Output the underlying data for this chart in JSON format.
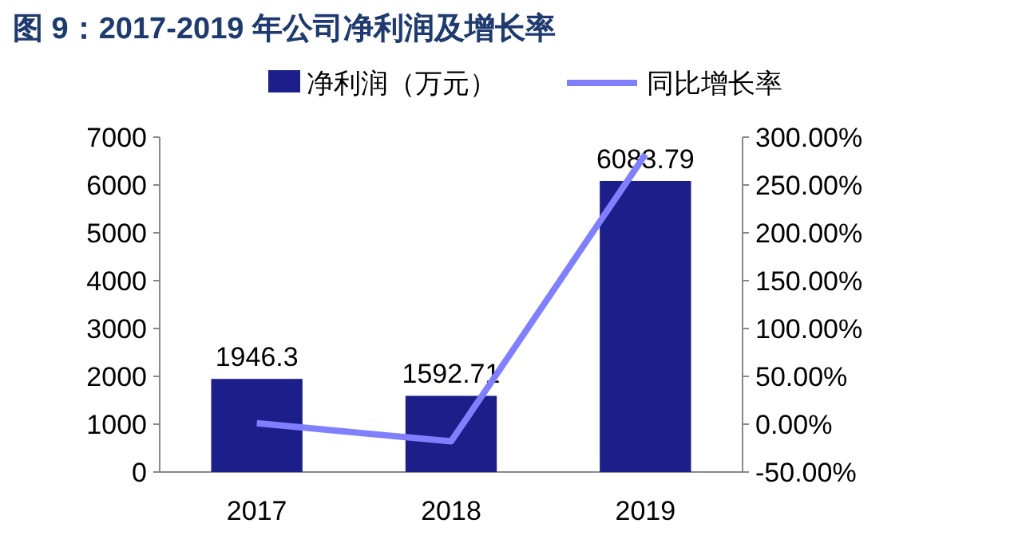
{
  "chart_data": {
    "type": "bar",
    "title": "图 9：2017-2019 年公司净利润及增长率",
    "categories": [
      "2017",
      "2018",
      "2019"
    ],
    "series": [
      {
        "name": "净利润（万元）",
        "color": "#1c1f8a",
        "values": [
          1946.3,
          1592.71,
          6083.79
        ],
        "value_labels": [
          "1946.3",
          "1592.71",
          "6083.79"
        ]
      },
      {
        "name": "同比增长率",
        "type": "line",
        "axis": "y2",
        "color": "#8080ff",
        "values": [
          1,
          -18,
          282
        ]
      }
    ],
    "ylim": [
      0,
      7000
    ],
    "yticks": [
      0,
      1000,
      2000,
      3000,
      4000,
      5000,
      6000,
      7000
    ],
    "y2lim": [
      -50,
      300
    ],
    "y2ticks": [
      {
        "value": -50,
        "label": "-50.00%"
      },
      {
        "value": 0,
        "label": "0.00%"
      },
      {
        "value": 50,
        "label": "50.00%"
      },
      {
        "value": 100,
        "label": "100.00%"
      },
      {
        "value": 150,
        "label": "150.00%"
      },
      {
        "value": 200,
        "label": "200.00%"
      },
      {
        "value": 250,
        "label": "250.00%"
      },
      {
        "value": 300,
        "label": "300.00%"
      }
    ],
    "legend": "top",
    "grid": false
  }
}
